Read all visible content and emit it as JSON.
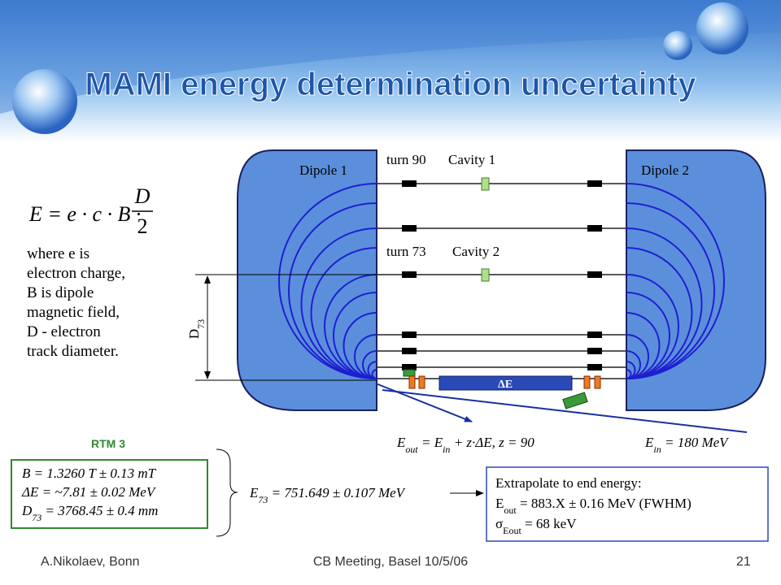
{
  "title": "MAMI energy determination uncertainty",
  "formula": {
    "lhs": "E = e · c · B ·",
    "numerator": "D",
    "denominator": "2"
  },
  "explanation": [
    "where e is",
    "electron charge,",
    "B is dipole",
    "magnetic field,",
    "D - electron",
    "track diameter."
  ],
  "diagram": {
    "dipole1": "Dipole 1",
    "dipole2": "Dipole 2",
    "turn90": "turn 90",
    "cavity1": "Cavity 1",
    "turn73": "turn 73",
    "cavity2": "Cavity 2",
    "d73": [
      "D",
      "73"
    ],
    "delta_e": "ΔE",
    "e_out": [
      "E",
      "out",
      " = E",
      "in",
      " + z·ΔE, z = 90"
    ],
    "e_in": [
      "E",
      "in",
      " = 180 MeV"
    ]
  },
  "rtm": {
    "label": "RTM 3",
    "lines": [
      [
        "B = 1.3260 T ± 0.13 mT"
      ],
      [
        "ΔE = ~7.81 ± 0.02 MeV"
      ],
      [
        "D",
        "73",
        " = 3768.45 ± 0.4 mm"
      ]
    ]
  },
  "e73": [
    "E",
    "73",
    " = 751.649 ± 0.107 MeV"
  ],
  "extrapolate": {
    "heading": "Extrapolate to end energy:",
    "lines": [
      [
        "E",
        "out",
        " = 883.X ± 0.16 MeV (FWHM)"
      ],
      [
        "σ",
        "Eout",
        " = 68 keV"
      ]
    ]
  },
  "footer": {
    "author": "A.Nikolaev, Bonn",
    "meeting": "CB Meeting, Basel 10/5/06",
    "page": "21"
  }
}
